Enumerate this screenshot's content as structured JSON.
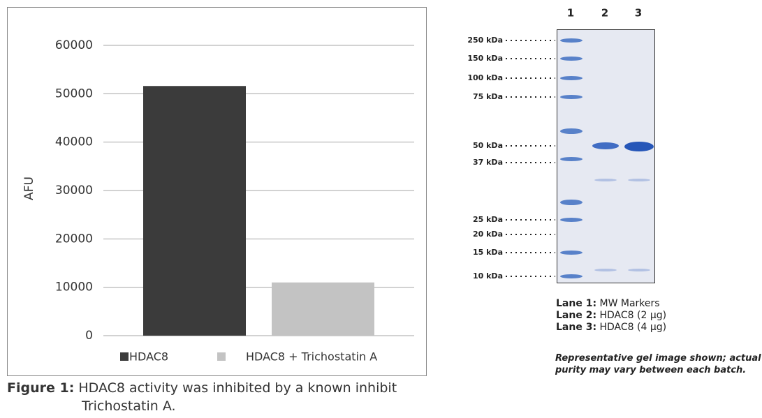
{
  "chart_data": {
    "type": "bar",
    "ylabel": "AFU",
    "categories": [
      null
    ],
    "series": [
      {
        "name": "HDAC8",
        "color": "#3b3b3b",
        "values": [
          51600
        ]
      },
      {
        "name": "HDAC8 + Trichostatin A",
        "color": "#c3c3c3",
        "values": [
          11000
        ]
      }
    ],
    "ylim": [
      0,
      60000
    ],
    "yticks": [
      0,
      10000,
      20000,
      30000,
      40000,
      50000,
      60000
    ],
    "grid": true
  },
  "caption": {
    "label": "Figure 1:",
    "text": "HDAC8 activity was inhibited by a known inhibit",
    "continuation": "Trichostatin A."
  },
  "gel": {
    "lanes": [
      "1",
      "2",
      "3"
    ],
    "markers": [
      "250 kDa",
      "150 kDa",
      "100 kDa",
      "75 kDa",
      "50 kDa",
      "37 kDa",
      "25 kDa",
      "20 kDa",
      "15 kDa",
      "10 kDa"
    ],
    "legend": [
      {
        "label": "Lane 1:",
        "text": "MW Markers"
      },
      {
        "label": "Lane 2:",
        "text": "HDAC8 (2 µg)"
      },
      {
        "label": "Lane 3:",
        "text": "HDAC8 (4 µg)"
      }
    ],
    "note": [
      "Representative gel image shown; actual",
      "purity may vary between each batch."
    ]
  }
}
